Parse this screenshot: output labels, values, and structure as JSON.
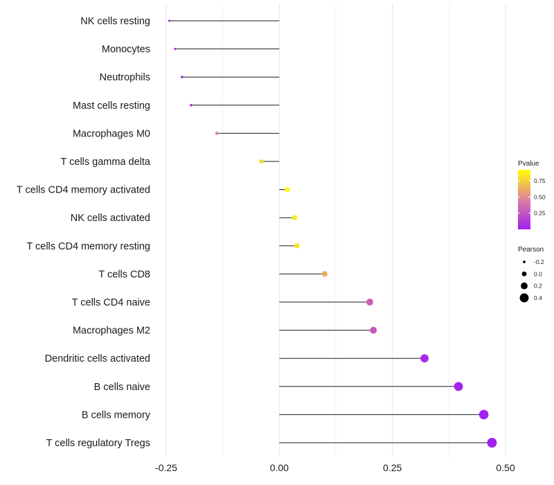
{
  "chart_data": {
    "type": "lollipop",
    "x_range": [
      -0.25,
      0.5
    ],
    "x_ticks": [
      -0.25,
      0,
      0.25,
      0.5
    ],
    "x_tick_labels": [
      "-0.25",
      "0.00",
      "0.25",
      "0.50"
    ],
    "grid": true,
    "points": [
      {
        "label": "NK cells resting",
        "pearson": -0.243,
        "pvalue": 0.01
      },
      {
        "label": "Monocytes",
        "pearson": -0.23,
        "pvalue": 0.02
      },
      {
        "label": "Neutrophils",
        "pearson": -0.215,
        "pvalue": 0.05
      },
      {
        "label": "Mast cells resting",
        "pearson": -0.195,
        "pvalue": 0.12
      },
      {
        "label": "Macrophages M0",
        "pearson": -0.138,
        "pvalue": 0.5
      },
      {
        "label": "T cells gamma delta",
        "pearson": -0.04,
        "pvalue": 0.8
      },
      {
        "label": "T cells CD4 memory activated",
        "pearson": 0.018,
        "pvalue": 0.9
      },
      {
        "label": "NK cells activated",
        "pearson": 0.034,
        "pvalue": 0.85
      },
      {
        "label": "T cells CD4 memory resting",
        "pearson": 0.039,
        "pvalue": 0.82
      },
      {
        "label": "T cells CD8",
        "pearson": 0.1,
        "pvalue": 0.62
      },
      {
        "label": "T cells CD4 naive",
        "pearson": 0.2,
        "pvalue": 0.3
      },
      {
        "label": "Macrophages M2",
        "pearson": 0.208,
        "pvalue": 0.28
      },
      {
        "label": "Dendritic cells activated",
        "pearson": 0.321,
        "pvalue": 0.05
      },
      {
        "label": "B cells naive",
        "pearson": 0.396,
        "pvalue": 0.02
      },
      {
        "label": "B cells memory",
        "pearson": 0.452,
        "pvalue": 0.01
      },
      {
        "label": "T cells regulatory  Tregs",
        "pearson": 0.47,
        "pvalue": 0.01
      }
    ],
    "legend_pvalue": {
      "title": "Pvalue",
      "ticks": [
        0.75,
        0.5,
        0.25
      ],
      "tick_labels": [
        "0.75",
        "0.50",
        "0.25"
      ],
      "range": [
        0,
        0.92
      ],
      "colors": [
        "#a020f0",
        "#e0809e",
        "#ffff00"
      ]
    },
    "legend_pearson": {
      "title": "Pearson",
      "values": [
        -0.2,
        0,
        0.2,
        0.4
      ],
      "labels": [
        "-0.2",
        "0.0",
        "0.2",
        "0.4"
      ]
    },
    "legend_position": "right"
  }
}
